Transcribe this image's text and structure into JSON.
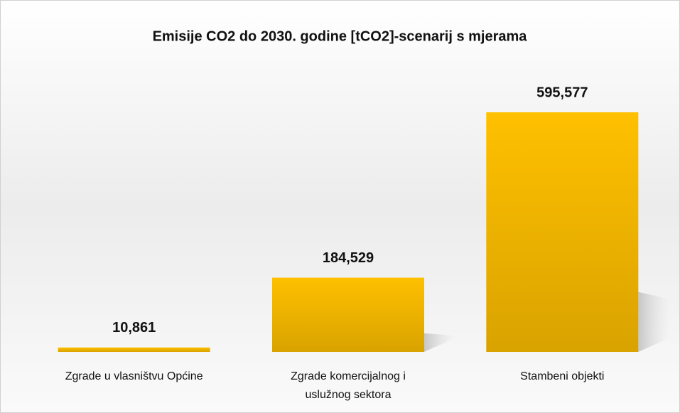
{
  "chart_data": {
    "type": "bar",
    "title": "Emisije CO2 do 2030. godine [tCO2]-scenarij s mjerama",
    "categories": [
      "Zgrade u vlasništvu Općine",
      "Zgrade komercijalnog i uslužnog sektora",
      "Stambeni objekti"
    ],
    "values": [
      10861,
      184529,
      595577
    ],
    "value_labels": [
      "10,861",
      "184,529",
      "595,577"
    ],
    "color": "#ffc000"
  }
}
